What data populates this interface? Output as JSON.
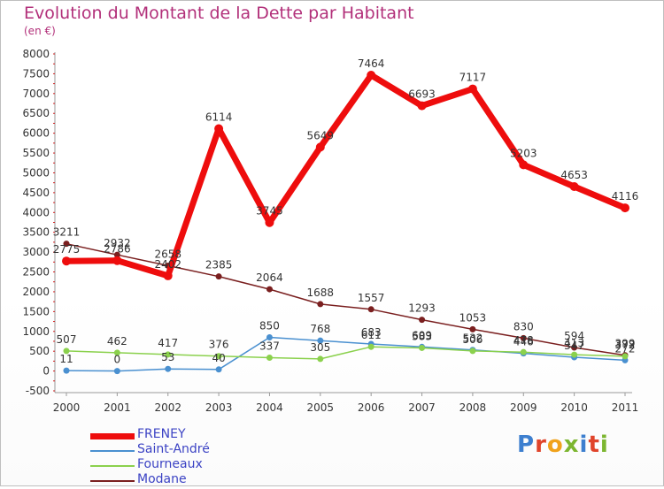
{
  "header": {
    "title": "Evolution du Montant de la Dette par Habitant",
    "subtitle": "(en €)"
  },
  "brand": {
    "letters": [
      {
        "ch": "P",
        "color": "#3d7fcf"
      },
      {
        "ch": "r",
        "color": "#e0442b"
      },
      {
        "ch": "o",
        "color": "#f0a21b"
      },
      {
        "ch": "x",
        "color": "#7cb630"
      },
      {
        "ch": "i",
        "color": "#3d7fcf"
      },
      {
        "ch": "t",
        "color": "#e0442b"
      },
      {
        "ch": "i",
        "color": "#7cb630"
      }
    ]
  },
  "chart_data": {
    "type": "line",
    "title": "Evolution du Montant de la Dette par Habitant",
    "ylabel": "(en €)",
    "xlabel": "",
    "x": [
      "2000",
      "2001",
      "2002",
      "2003",
      "2004",
      "2005",
      "2006",
      "2007",
      "2008",
      "2009",
      "2010",
      "2011"
    ],
    "ylim": [
      -500,
      8000
    ],
    "yticks": [
      -500,
      0,
      500,
      1000,
      1500,
      2000,
      2500,
      3000,
      3500,
      4000,
      4500,
      5000,
      5500,
      6000,
      6500,
      7000,
      7500,
      8000
    ],
    "grid": false,
    "legend_position": "bottom-left",
    "series": [
      {
        "name": "Modane",
        "color": "#7a1f1f",
        "values": [
          3211,
          2932,
          2658,
          2385,
          2064,
          1688,
          1557,
          1293,
          1053,
          830,
          594,
          399
        ]
      },
      {
        "name": "Saint-André",
        "color": "#4a90d0",
        "values": [
          11,
          0,
          53,
          40,
          850,
          768,
          683,
          609,
          532,
          446,
          347,
          272
        ]
      },
      {
        "name": "Fourneaux",
        "color": "#8bd14d",
        "values": [
          507,
          462,
          417,
          376,
          337,
          305,
          611,
          583,
          506,
          478,
          413,
          372
        ]
      },
      {
        "name": "FRENEY",
        "color": "#ee0d0d",
        "values": [
          2775,
          2786,
          2402,
          6114,
          3745,
          5649,
          7464,
          6693,
          7117,
          5203,
          4653,
          4116
        ]
      }
    ]
  }
}
